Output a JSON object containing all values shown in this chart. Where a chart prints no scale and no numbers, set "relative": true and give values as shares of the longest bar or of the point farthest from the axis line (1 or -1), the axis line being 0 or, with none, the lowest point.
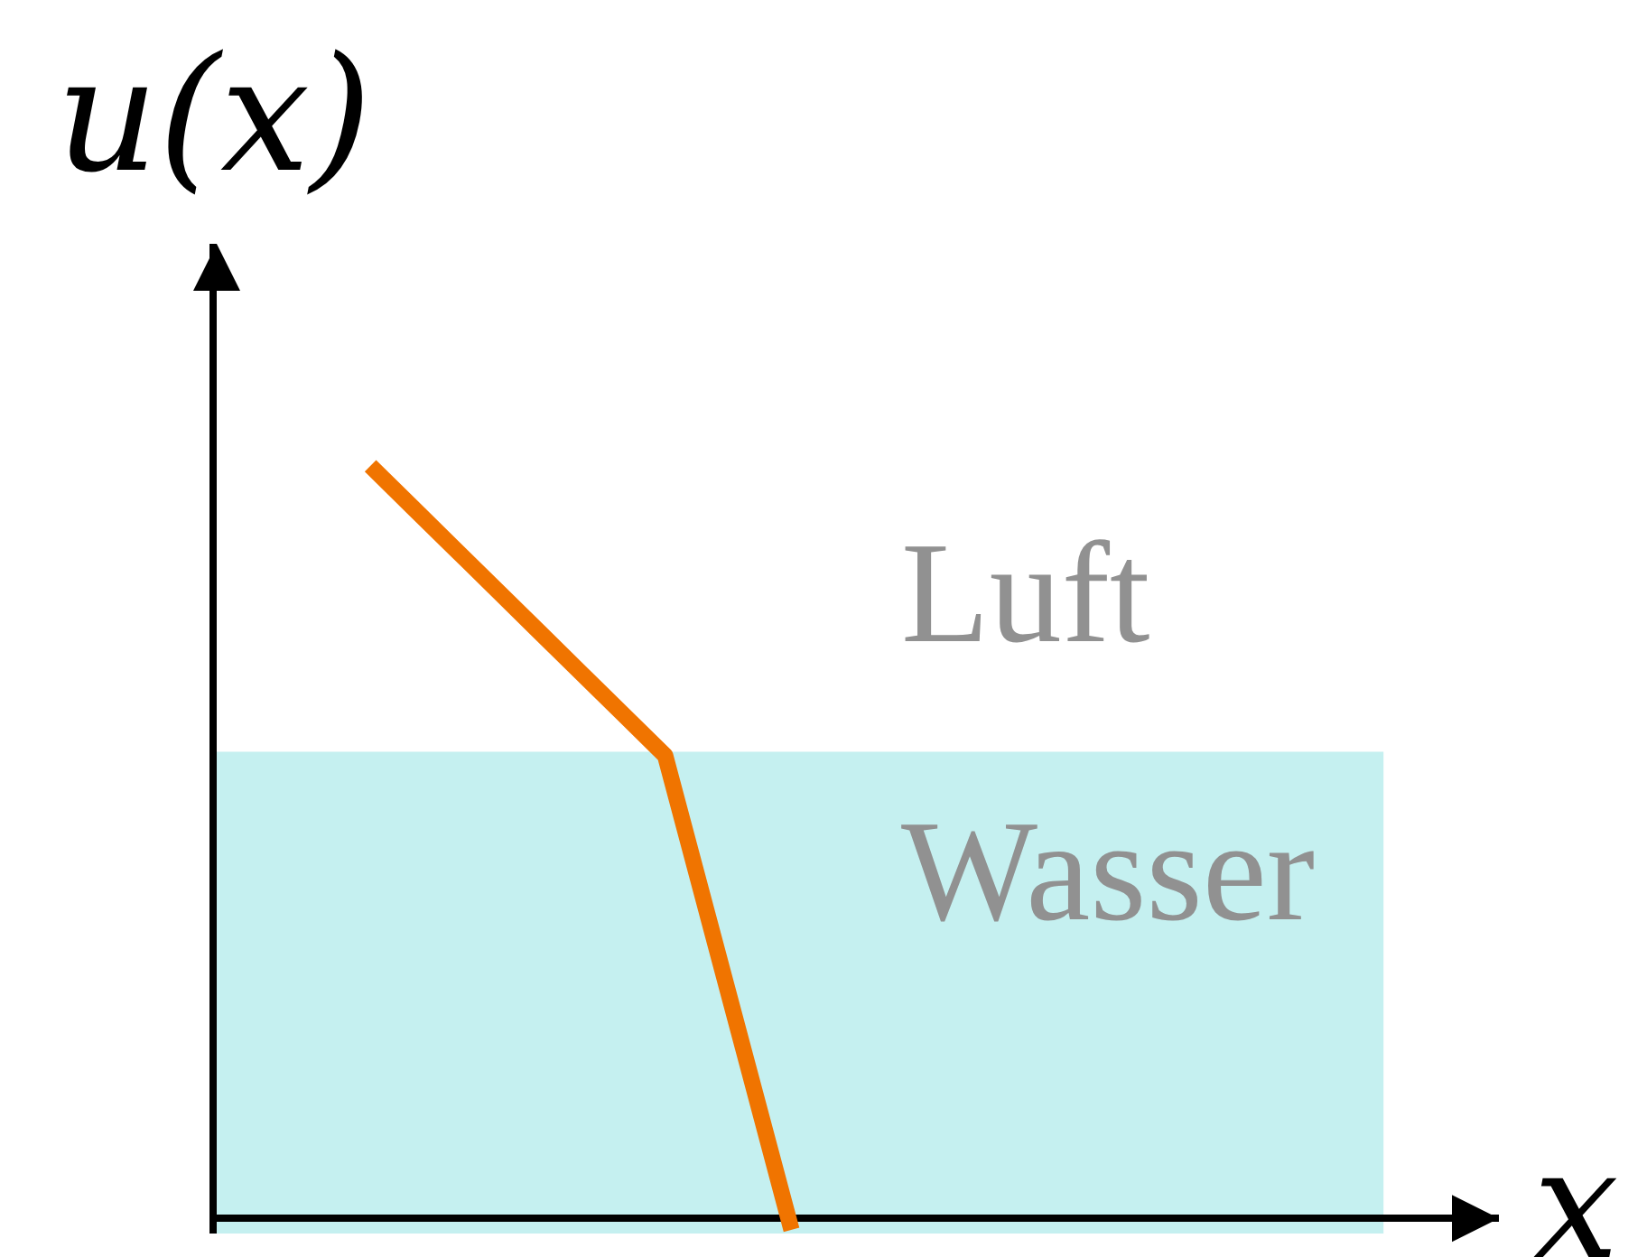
{
  "chart_data": {
    "type": "line",
    "xlabel": "x",
    "ylabel": "u(x)",
    "relative": true,
    "categories": [
      null,
      null,
      null,
      null,
      null,
      null,
      null,
      null,
      null,
      null,
      null
    ],
    "series": [
      {
        "color": "#f07400",
        "values": [
          1,
          0.945,
          0.89,
          0.835,
          0.78,
          0.725,
          0.67,
          0.615,
          0.405,
          0.195,
          -0.015
        ]
      }
    ],
    "bands": [
      {
        "axis": "y",
        "from": -0.02,
        "to": 0.62,
        "label": "Wasser",
        "color": "#c5f0f0"
      }
    ],
    "annotations": [
      "Luft"
    ],
    "marker": "none",
    "line_style": "solid"
  }
}
